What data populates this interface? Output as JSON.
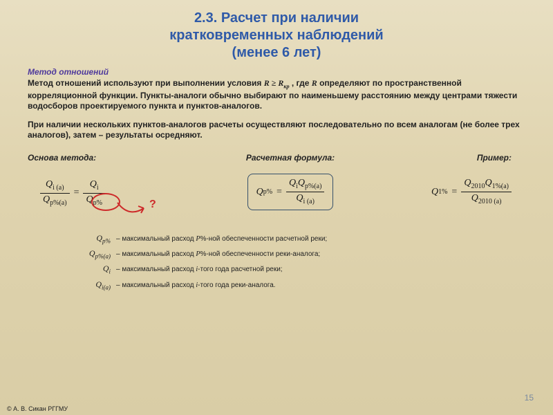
{
  "colors": {
    "title": "#2f5aa8",
    "subtitle": "#4f3a9c",
    "body": "#222222",
    "highlight": "#cd2a2a",
    "box_border": "#36506b",
    "pagenum": "#7a8aa0"
  },
  "fonts": {
    "title_pt": 20,
    "subtitle_pt": 12,
    "body_pt": 12,
    "headers_pt": 12,
    "formula_pt": 14,
    "formula_sub_pt": 10,
    "legend_sym_pt": 12,
    "legend_txt_pt": 10,
    "pagenum_pt": 12,
    "copyright_pt": 9
  },
  "title_line1": "2.3.  Расчет при наличии",
  "title_line2": "кратковременных наблюдений",
  "title_line3": "(менее 6 лет)",
  "subtitle": "Метод отношений",
  "para1_pre": "Метод отношений используют при выполнении условия ",
  "para1_cond_lhs": "R",
  "para1_cond_op": " ≥ ",
  "para1_cond_rhs": "R",
  "para1_cond_rhs_sub": "кр",
  "para1_mid": " , где ",
  "para1_R": "R",
  "para1_post": " определяют по пространственной корреляционной функции. Пункты-аналоги обычно выбирают по наименьшему расстоянию между центрами тяжести водосборов проектируемого пункта и пунктов-аналогов.",
  "para2": "При наличии нескольких пунктов-аналогов расчеты осуществляют последовательно по всем аналогам (не более трех аналогов), затем – результаты осредняют.",
  "headers": {
    "basis": "Основа метода:",
    "formula": "Расчетная формула:",
    "example": "Пример:"
  },
  "formulas": {
    "basis": {
      "lhs_num": "Q",
      "lhs_num_sub": "i (a)",
      "lhs_den": "Q",
      "lhs_den_sub": "p%(a)",
      "rhs_num": "Q",
      "rhs_num_sub": "i",
      "rhs_den": "Q",
      "rhs_den_sub": "p%"
    },
    "main": {
      "lhs": "Q",
      "lhs_sub": "p%",
      "rhs_num_a": "Q",
      "rhs_num_a_sub": "i",
      "rhs_num_b": "Q",
      "rhs_num_b_sub": "p%(a)",
      "rhs_den": "Q",
      "rhs_den_sub": "i (a)"
    },
    "example": {
      "lhs": "Q",
      "lhs_sub": "1%",
      "rhs_num_a": "Q",
      "rhs_num_a_sub": "2010",
      "rhs_num_b": "Q",
      "rhs_num_b_sub": "1%(a)",
      "rhs_den": "Q",
      "rhs_den_sub": "2010 (a)"
    },
    "qmark": "?"
  },
  "legend": [
    {
      "sym": "Q",
      "sym_sub": "p%",
      "dash": "– ",
      "txt_pre": "максимальный расход  ",
      "txt_ital": "P",
      "txt_post": "%-ной обеспеченности расчетной реки;"
    },
    {
      "sym": "Q",
      "sym_sub": "p%(a)",
      "dash": "– ",
      "txt_pre": "максимальный расход  ",
      "txt_ital": "P",
      "txt_post": "%-ной обеспеченности реки-аналога;"
    },
    {
      "sym": "Q",
      "sym_sub": "i",
      "dash": "– ",
      "txt_pre": "максимальный расход  ",
      "txt_ital": "i",
      "txt_post": "-того года расчетной реки;"
    },
    {
      "sym": "Q",
      "sym_sub": "i(a)",
      "dash": "– ",
      "txt_pre": "максимальный расход  ",
      "txt_ital": "i",
      "txt_post": "-того года реки-аналога."
    }
  ],
  "pagenum": "15",
  "copyright": "© А. В. Сикан РГГМУ"
}
